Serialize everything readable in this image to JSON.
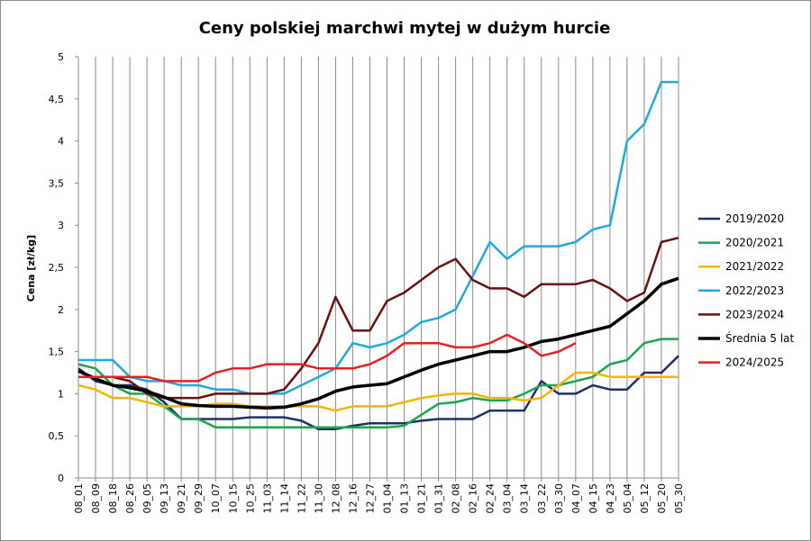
{
  "chart_data": {
    "type": "line",
    "title": "Ceny polskiej  marchwi mytej w dużym hurcie",
    "xlabel": "",
    "ylabel": "Cena [zł/kg]",
    "ylim": [
      0,
      5
    ],
    "yticks": [
      "0",
      "0,5",
      "1",
      "1,5",
      "2",
      "2,5",
      "3",
      "3,5",
      "4",
      "4,5",
      "5"
    ],
    "x_categories": [
      "08_01",
      "08_09",
      "08_18",
      "08_26",
      "09_05",
      "09_13",
      "09_21",
      "09_29",
      "10_07",
      "10_15",
      "10_25",
      "11_03",
      "11_14",
      "11_22",
      "11_30",
      "12_08",
      "12_16",
      "12_27",
      "01_04",
      "01_13",
      "01_21",
      "01_31",
      "02_08",
      "02_16",
      "02_24",
      "03_04",
      "03_14",
      "03_22",
      "03_30",
      "04_07",
      "04_15",
      "04_23",
      "05_04",
      "05_12",
      "05_20",
      "05_30"
    ],
    "grid": "vertical",
    "legend_position": "right",
    "series": [
      {
        "name": "2019/2020",
        "color": "#1f3069",
        "values": [
          1.3,
          1.15,
          1.1,
          1.1,
          1.05,
          0.9,
          0.7,
          0.7,
          0.7,
          0.7,
          0.72,
          0.72,
          0.72,
          0.68,
          0.58,
          0.58,
          0.62,
          0.65,
          0.65,
          0.65,
          0.68,
          0.7,
          0.7,
          0.7,
          0.8,
          0.8,
          0.8,
          1.15,
          1.0,
          1.0,
          1.1,
          1.05,
          1.05,
          1.25,
          1.25,
          1.45
        ]
      },
      {
        "name": "2020/2021",
        "color": "#1aa64a",
        "values": [
          1.35,
          1.3,
          1.1,
          1.0,
          1.0,
          0.85,
          0.7,
          0.7,
          0.6,
          0.6,
          0.6,
          0.6,
          0.6,
          0.6,
          0.6,
          0.6,
          0.6,
          0.6,
          0.6,
          0.62,
          0.75,
          0.88,
          0.9,
          0.95,
          0.92,
          0.92,
          1.0,
          1.1,
          1.1,
          1.15,
          1.2,
          1.35,
          1.4,
          1.6,
          1.65,
          1.65
        ]
      },
      {
        "name": "2021/2022",
        "color": "#f4b400",
        "values": [
          1.1,
          1.05,
          0.95,
          0.95,
          0.9,
          0.85,
          0.85,
          0.85,
          0.88,
          0.88,
          0.85,
          0.85,
          0.85,
          0.85,
          0.85,
          0.8,
          0.85,
          0.85,
          0.85,
          0.9,
          0.95,
          0.98,
          1.0,
          1.0,
          0.95,
          0.95,
          0.92,
          0.95,
          1.1,
          1.25,
          1.25,
          1.2,
          1.2,
          1.2,
          1.2,
          1.2
        ]
      },
      {
        "name": "2022/2023",
        "color": "#1ea9e0",
        "values": [
          1.4,
          1.4,
          1.4,
          1.2,
          1.15,
          1.15,
          1.1,
          1.1,
          1.05,
          1.05,
          1.0,
          1.0,
          1.0,
          1.1,
          1.2,
          1.3,
          1.6,
          1.55,
          1.6,
          1.7,
          1.85,
          1.9,
          2.0,
          2.4,
          2.8,
          2.6,
          2.75,
          2.75,
          2.75,
          2.8,
          2.95,
          3.0,
          4.0,
          4.2,
          4.7,
          4.7
        ]
      },
      {
        "name": "2023/2024",
        "color": "#6b0f0f",
        "values": [
          1.2,
          1.2,
          1.2,
          1.15,
          1.0,
          0.95,
          0.95,
          0.95,
          1.0,
          1.0,
          1.0,
          1.0,
          1.05,
          1.3,
          1.6,
          2.15,
          1.75,
          1.75,
          2.1,
          2.2,
          2.35,
          2.5,
          2.6,
          2.35,
          2.25,
          2.25,
          2.15,
          2.3,
          2.3,
          2.3,
          2.35,
          2.25,
          2.1,
          2.2,
          2.8,
          2.85
        ]
      },
      {
        "name": "Średnia 5 lat",
        "color": "#000000",
        "values": [
          1.27,
          1.18,
          1.1,
          1.07,
          1.03,
          0.96,
          0.88,
          0.86,
          0.85,
          0.85,
          0.84,
          0.83,
          0.84,
          0.88,
          0.94,
          1.03,
          1.08,
          1.1,
          1.12,
          1.2,
          1.28,
          1.35,
          1.4,
          1.45,
          1.5,
          1.5,
          1.55,
          1.62,
          1.65,
          1.7,
          1.75,
          1.8,
          1.95,
          2.1,
          2.3,
          2.37
        ]
      },
      {
        "name": "2024/2025",
        "color": "#e82020",
        "values": [
          1.2,
          1.2,
          1.2,
          1.2,
          1.2,
          1.15,
          1.15,
          1.15,
          1.25,
          1.3,
          1.3,
          1.35,
          1.35,
          1.35,
          1.3,
          1.3,
          1.3,
          1.35,
          1.45,
          1.6,
          1.6,
          1.6,
          1.55,
          1.55,
          1.6,
          1.7,
          1.6,
          1.45,
          1.5,
          1.6,
          null,
          null,
          null,
          null,
          null,
          null
        ]
      }
    ]
  }
}
